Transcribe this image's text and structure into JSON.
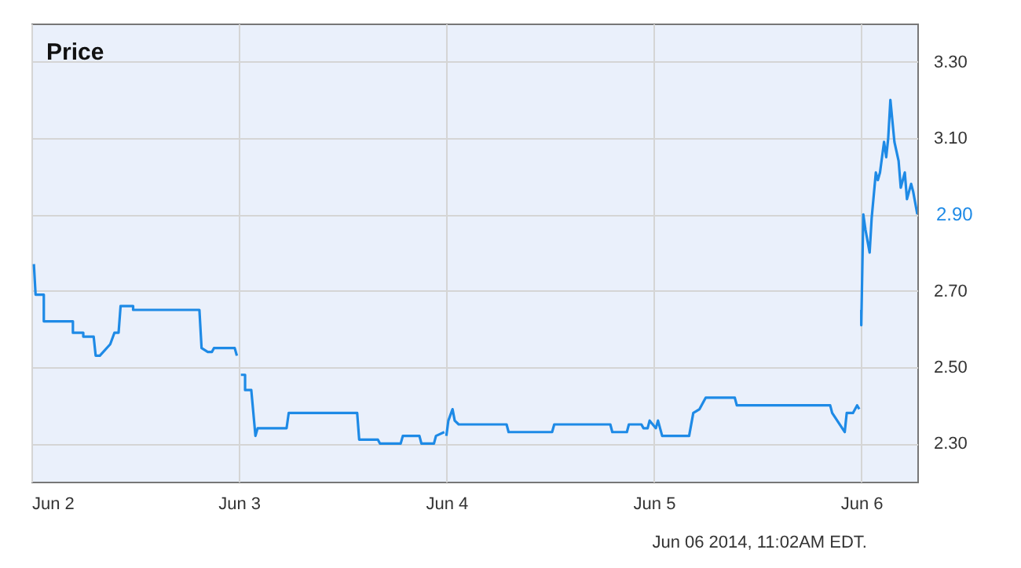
{
  "chart_data": {
    "type": "line",
    "title": "Price",
    "x": [
      "2014-06-02T00:17",
      "2014-06-02T00:29",
      "2014-06-02T01:26",
      "2014-06-02T01:26",
      "2014-06-02T04:48",
      "2014-06-02T04:48",
      "2014-06-02T06:00",
      "2014-06-02T06:00",
      "2014-06-02T07:12",
      "2014-06-02T07:26",
      "2014-06-02T07:55",
      "2014-06-02T09:07",
      "2014-06-02T09:36",
      "2014-06-02T10:05",
      "2014-06-02T10:19",
      "2014-06-02T11:46",
      "2014-06-02T11:46",
      "2014-06-02T19:26",
      "2014-06-02T19:41",
      "2014-06-02T20:24",
      "2014-06-02T20:53",
      "2014-06-02T21:07",
      "2014-06-02T23:31",
      "2014-06-02T23:46",
      "2014-06-03T00:00",
      "2014-06-03T00:14",
      "2014-06-03T00:43",
      "2014-06-03T00:43",
      "2014-06-03T01:26",
      "2014-06-03T01:55",
      "2014-06-03T02:10",
      "2014-06-03T05:31",
      "2014-06-03T05:46",
      "2014-06-03T13:41",
      "2014-06-03T13:55",
      "2014-06-03T16:05",
      "2014-06-03T16:19",
      "2014-06-03T18:43",
      "2014-06-03T18:58",
      "2014-06-03T20:53",
      "2014-06-03T21:07",
      "2014-06-03T22:34",
      "2014-06-03T22:48",
      "2014-06-03T23:46",
      "2014-06-03T23:53",
      "2014-06-04T00:00",
      "2014-06-04T00:14",
      "2014-06-04T00:43",
      "2014-06-04T00:58",
      "2014-06-04T01:26",
      "2014-06-04T06:58",
      "2014-06-04T07:12",
      "2014-06-04T12:14",
      "2014-06-04T12:29",
      "2014-06-04T18:58",
      "2014-06-04T19:12",
      "2014-06-04T20:53",
      "2014-06-04T21:07",
      "2014-06-04T22:34",
      "2014-06-04T22:48",
      "2014-06-04T23:17",
      "2014-06-04T23:31",
      "2014-06-05T00:14",
      "2014-06-05T00:29",
      "2014-06-05T00:58",
      "2014-06-05T04:05",
      "2014-06-05T04:34",
      "2014-06-05T05:17",
      "2014-06-05T06:00",
      "2014-06-05T09:22",
      "2014-06-05T09:36",
      "2014-06-05T20:24",
      "2014-06-05T20:38",
      "2014-06-05T22:05",
      "2014-06-05T22:19",
      "2014-06-05T23:02",
      "2014-06-05T23:31",
      "2014-06-05T23:46",
      "2014-06-05T23:53",
      "2014-06-06T00:00",
      "2014-06-06T00:00",
      "2014-06-06T00:14",
      "2014-06-06T00:29",
      "2014-06-06T00:58",
      "2014-06-06T01:12",
      "2014-06-06T01:41",
      "2014-06-06T01:55",
      "2014-06-06T02:10",
      "2014-06-06T02:38",
      "2014-06-06T02:53",
      "2014-06-06T03:07",
      "2014-06-06T03:22",
      "2014-06-06T03:50",
      "2014-06-06T04:19",
      "2014-06-06T04:34",
      "2014-06-06T05:02",
      "2014-06-06T05:17",
      "2014-06-06T05:46",
      "2014-06-06T06:00",
      "2014-06-06T06:29"
    ],
    "series": [
      {
        "color": "#1e8ae6",
        "values": [
          2.77,
          2.69,
          2.69,
          2.62,
          2.62,
          2.59,
          2.59,
          2.58,
          2.58,
          2.53,
          2.53,
          2.56,
          2.59,
          2.59,
          2.66,
          2.66,
          2.65,
          2.65,
          2.55,
          2.54,
          2.54,
          2.55,
          2.55,
          2.53,
          null,
          2.48,
          2.48,
          2.44,
          2.44,
          2.32,
          2.34,
          2.34,
          2.38,
          2.38,
          2.31,
          2.31,
          2.3,
          2.3,
          2.32,
          2.32,
          2.3,
          2.3,
          2.32,
          2.33,
          null,
          2.32,
          2.36,
          2.39,
          2.36,
          2.35,
          2.35,
          2.33,
          2.33,
          2.35,
          2.35,
          2.33,
          2.33,
          2.35,
          2.35,
          2.34,
          2.34,
          2.36,
          2.34,
          2.36,
          2.32,
          2.32,
          2.38,
          2.39,
          2.42,
          2.42,
          2.4,
          2.4,
          2.38,
          2.33,
          2.38,
          2.38,
          2.4,
          2.39,
          null,
          2.65,
          2.61,
          2.9,
          2.86,
          2.8,
          2.89,
          3.01,
          2.99,
          3.01,
          3.09,
          3.05,
          3.1,
          3.2,
          3.09,
          3.04,
          2.97,
          3.01,
          2.94,
          2.98,
          2.96,
          2.9
        ]
      }
    ],
    "xlim": [
      "2014-06-02T00:00",
      "2014-06-06T06:29"
    ],
    "xticks": [
      {
        "value": "2014-06-02",
        "label": "Jun 2"
      },
      {
        "value": "2014-06-03",
        "label": "Jun 3"
      },
      {
        "value": "2014-06-04",
        "label": "Jun 4"
      },
      {
        "value": "2014-06-05",
        "label": "Jun 5"
      },
      {
        "value": "2014-06-06",
        "label": "Jun 6"
      }
    ],
    "ylim": [
      2.2,
      3.4
    ],
    "yticks": [
      {
        "value": 2.3,
        "label": "2.30"
      },
      {
        "value": 2.5,
        "label": "2.50"
      },
      {
        "value": 2.7,
        "label": "2.70"
      },
      {
        "value": 2.9,
        "label": null
      },
      {
        "value": 3.1,
        "label": "3.10"
      },
      {
        "value": 3.3,
        "label": "3.30"
      }
    ],
    "grid": true,
    "annotations": [
      {
        "text": "2.90",
        "x": "2014-06-06T06:29",
        "y": 2.9
      },
      "Jun 06 2014, 11:02AM EDT."
    ]
  }
}
